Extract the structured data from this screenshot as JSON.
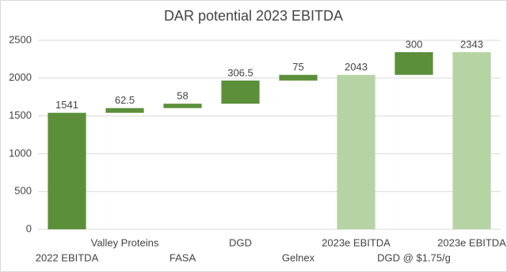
{
  "chart_data": {
    "type": "waterfall",
    "title": "DAR potential 2023 EBITDA",
    "categories": [
      "2022 EBITDA",
      "Valley Proteins",
      "FASA",
      "DGD",
      "Gelnex",
      "2023e EBITDA",
      "DGD @ $1.75/g",
      "2023e EBITDA"
    ],
    "values": [
      1541,
      62.5,
      58,
      306.5,
      75,
      2043,
      300,
      2343
    ],
    "measure": [
      "total",
      "relative",
      "relative",
      "relative",
      "relative",
      "total",
      "relative",
      "total"
    ],
    "colors": [
      "#5b8f3a",
      "#5b8f3a",
      "#5b8f3a",
      "#5b8f3a",
      "#5b8f3a",
      "#b6d3a4",
      "#5b8f3a",
      "#b6d3a4"
    ],
    "ylim": [
      0,
      2500
    ],
    "yticks": [
      0,
      500,
      1000,
      1500,
      2000,
      2500
    ],
    "grid": true
  }
}
